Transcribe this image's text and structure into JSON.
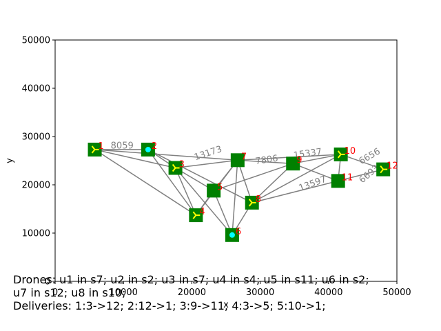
{
  "chart_data": {
    "type": "scatter",
    "title": "",
    "xlabel": "x",
    "ylabel": "y",
    "xlim": [
      0,
      50000
    ],
    "ylim": [
      0,
      50000
    ],
    "xticks": [
      0,
      10000,
      20000,
      30000,
      40000,
      50000
    ],
    "yticks": [
      0,
      10000,
      20000,
      30000,
      40000,
      50000
    ],
    "xtick_labels": [
      "0",
      "10000",
      "20000",
      "30000",
      "40000",
      "50000"
    ],
    "ytick_labels": [
      "0",
      "10000",
      "20000",
      "30000",
      "40000",
      "50000"
    ],
    "grid": false,
    "nodes": [
      {
        "id": "1",
        "x": 5800,
        "y": 27300,
        "marker": "tri"
      },
      {
        "id": "2",
        "x": 13600,
        "y": 27300,
        "marker": "dot"
      },
      {
        "id": "3",
        "x": 17600,
        "y": 23500,
        "marker": "tri"
      },
      {
        "id": "4",
        "x": 20600,
        "y": 13700,
        "marker": "tri"
      },
      {
        "id": "5",
        "x": 23200,
        "y": 18800,
        "marker": "none"
      },
      {
        "id": "6",
        "x": 25900,
        "y": 9600,
        "marker": "dot"
      },
      {
        "id": "7",
        "x": 26700,
        "y": 25100,
        "marker": "none"
      },
      {
        "id": "8",
        "x": 28800,
        "y": 16300,
        "marker": "tri"
      },
      {
        "id": "9",
        "x": 34800,
        "y": 24400,
        "marker": "none"
      },
      {
        "id": "10",
        "x": 41800,
        "y": 26300,
        "marker": "tri"
      },
      {
        "id": "11",
        "x": 41400,
        "y": 20800,
        "marker": "none"
      },
      {
        "id": "12",
        "x": 48000,
        "y": 23200,
        "marker": "tri"
      }
    ],
    "edges": [
      [
        "1",
        "2"
      ],
      [
        "1",
        "3"
      ],
      [
        "1",
        "7"
      ],
      [
        "1",
        "4"
      ],
      [
        "2",
        "3"
      ],
      [
        "2",
        "4"
      ],
      [
        "2",
        "8"
      ],
      [
        "3",
        "4"
      ],
      [
        "3",
        "5"
      ],
      [
        "3",
        "7"
      ],
      [
        "3",
        "6"
      ],
      [
        "4",
        "5"
      ],
      [
        "4",
        "7"
      ],
      [
        "5",
        "7"
      ],
      [
        "5",
        "9"
      ],
      [
        "5",
        "6"
      ],
      [
        "6",
        "7"
      ],
      [
        "6",
        "8"
      ],
      [
        "7",
        "8"
      ],
      [
        "7",
        "9"
      ],
      [
        "7",
        "10"
      ],
      [
        "8",
        "9"
      ],
      [
        "8",
        "10"
      ],
      [
        "8",
        "11"
      ],
      [
        "9",
        "10"
      ],
      [
        "9",
        "11"
      ],
      [
        "10",
        "11"
      ],
      [
        "10",
        "12"
      ],
      [
        "11",
        "12"
      ]
    ],
    "edge_labels": [
      {
        "text": "8059",
        "x": 9800,
        "y": 27500,
        "angle": 0
      },
      {
        "text": "13173",
        "x": 22500,
        "y": 26000,
        "angle": 18
      },
      {
        "text": "7806",
        "x": 31000,
        "y": 24600,
        "angle": 8
      },
      {
        "text": "15337",
        "x": 37000,
        "y": 25900,
        "angle": 8
      },
      {
        "text": "6656",
        "x": 46200,
        "y": 25400,
        "angle": 30
      },
      {
        "text": "13597",
        "x": 37800,
        "y": 19700,
        "angle": 20
      },
      {
        "text": "6693",
        "x": 46200,
        "y": 21800,
        "angle": 40
      }
    ]
  },
  "caption": {
    "line1": "Drones: u1 in s7; u2 in s2; u3 in s7; u4 in s4; u5 in s11; u6 in s2;",
    "line2": "u7 in s12; u8 in s10;",
    "line3": "Deliveries: 1:3->12; 2:12->1; 3:9->11; 4:3->5; 5:10->1;"
  },
  "colors": {
    "node_fill": "#008000",
    "node_marker_tri": "#ffff00",
    "node_marker_dot": "#00ffff",
    "edge": "#808080",
    "node_id": "#ff0000"
  }
}
